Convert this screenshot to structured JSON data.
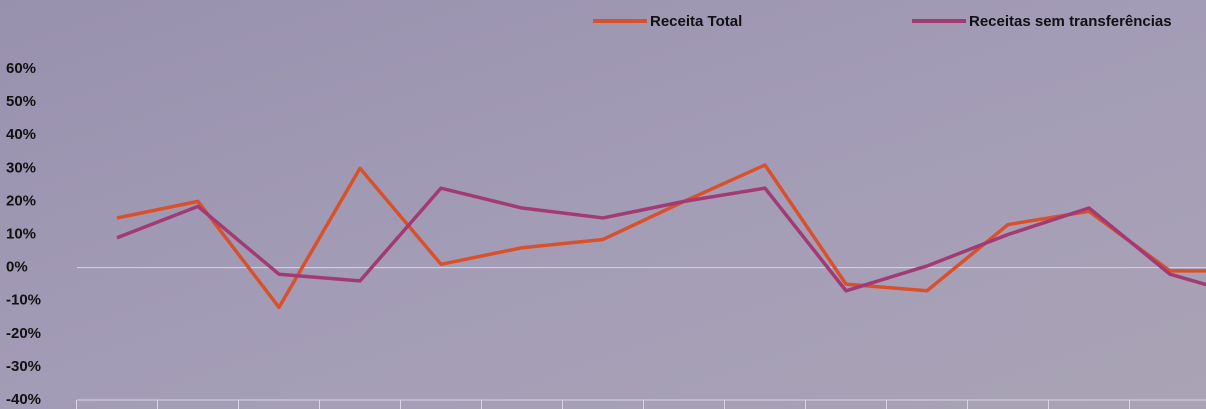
{
  "chart_data": {
    "type": "line",
    "categories": [
      null,
      null,
      null,
      null,
      null,
      null,
      null,
      null,
      null,
      null,
      null,
      null,
      null,
      null,
      null
    ],
    "series": [
      {
        "name": "Receita Total",
        "color": "#d9512b",
        "values": [
          15,
          20,
          -12,
          30,
          1,
          6,
          8.5,
          20,
          31,
          -5,
          -7,
          13,
          17,
          -1,
          -1
        ]
      },
      {
        "name": "Receitas sem transferências",
        "color": "#a23a74",
        "values": [
          9,
          18.5,
          -2,
          -4,
          24,
          18,
          15,
          20,
          24,
          -7,
          0.5,
          10,
          18,
          -2,
          -9
        ]
      }
    ],
    "ylim": [
      -40,
      60
    ],
    "yticks": [
      {
        "value": -40,
        "label": "-40%"
      },
      {
        "value": -30,
        "label": "-30%"
      },
      {
        "value": -20,
        "label": "-20%"
      },
      {
        "value": -10,
        "label": "-10%"
      },
      {
        "value": 0,
        "label": "0%"
      },
      {
        "value": 10,
        "label": "10%"
      },
      {
        "value": 20,
        "label": "20%"
      },
      {
        "value": 30,
        "label": "30%"
      },
      {
        "value": 40,
        "label": "40%"
      },
      {
        "value": 50,
        "label": "50%"
      },
      {
        "value": 60,
        "label": "60%"
      }
    ],
    "legend": "top-right"
  }
}
